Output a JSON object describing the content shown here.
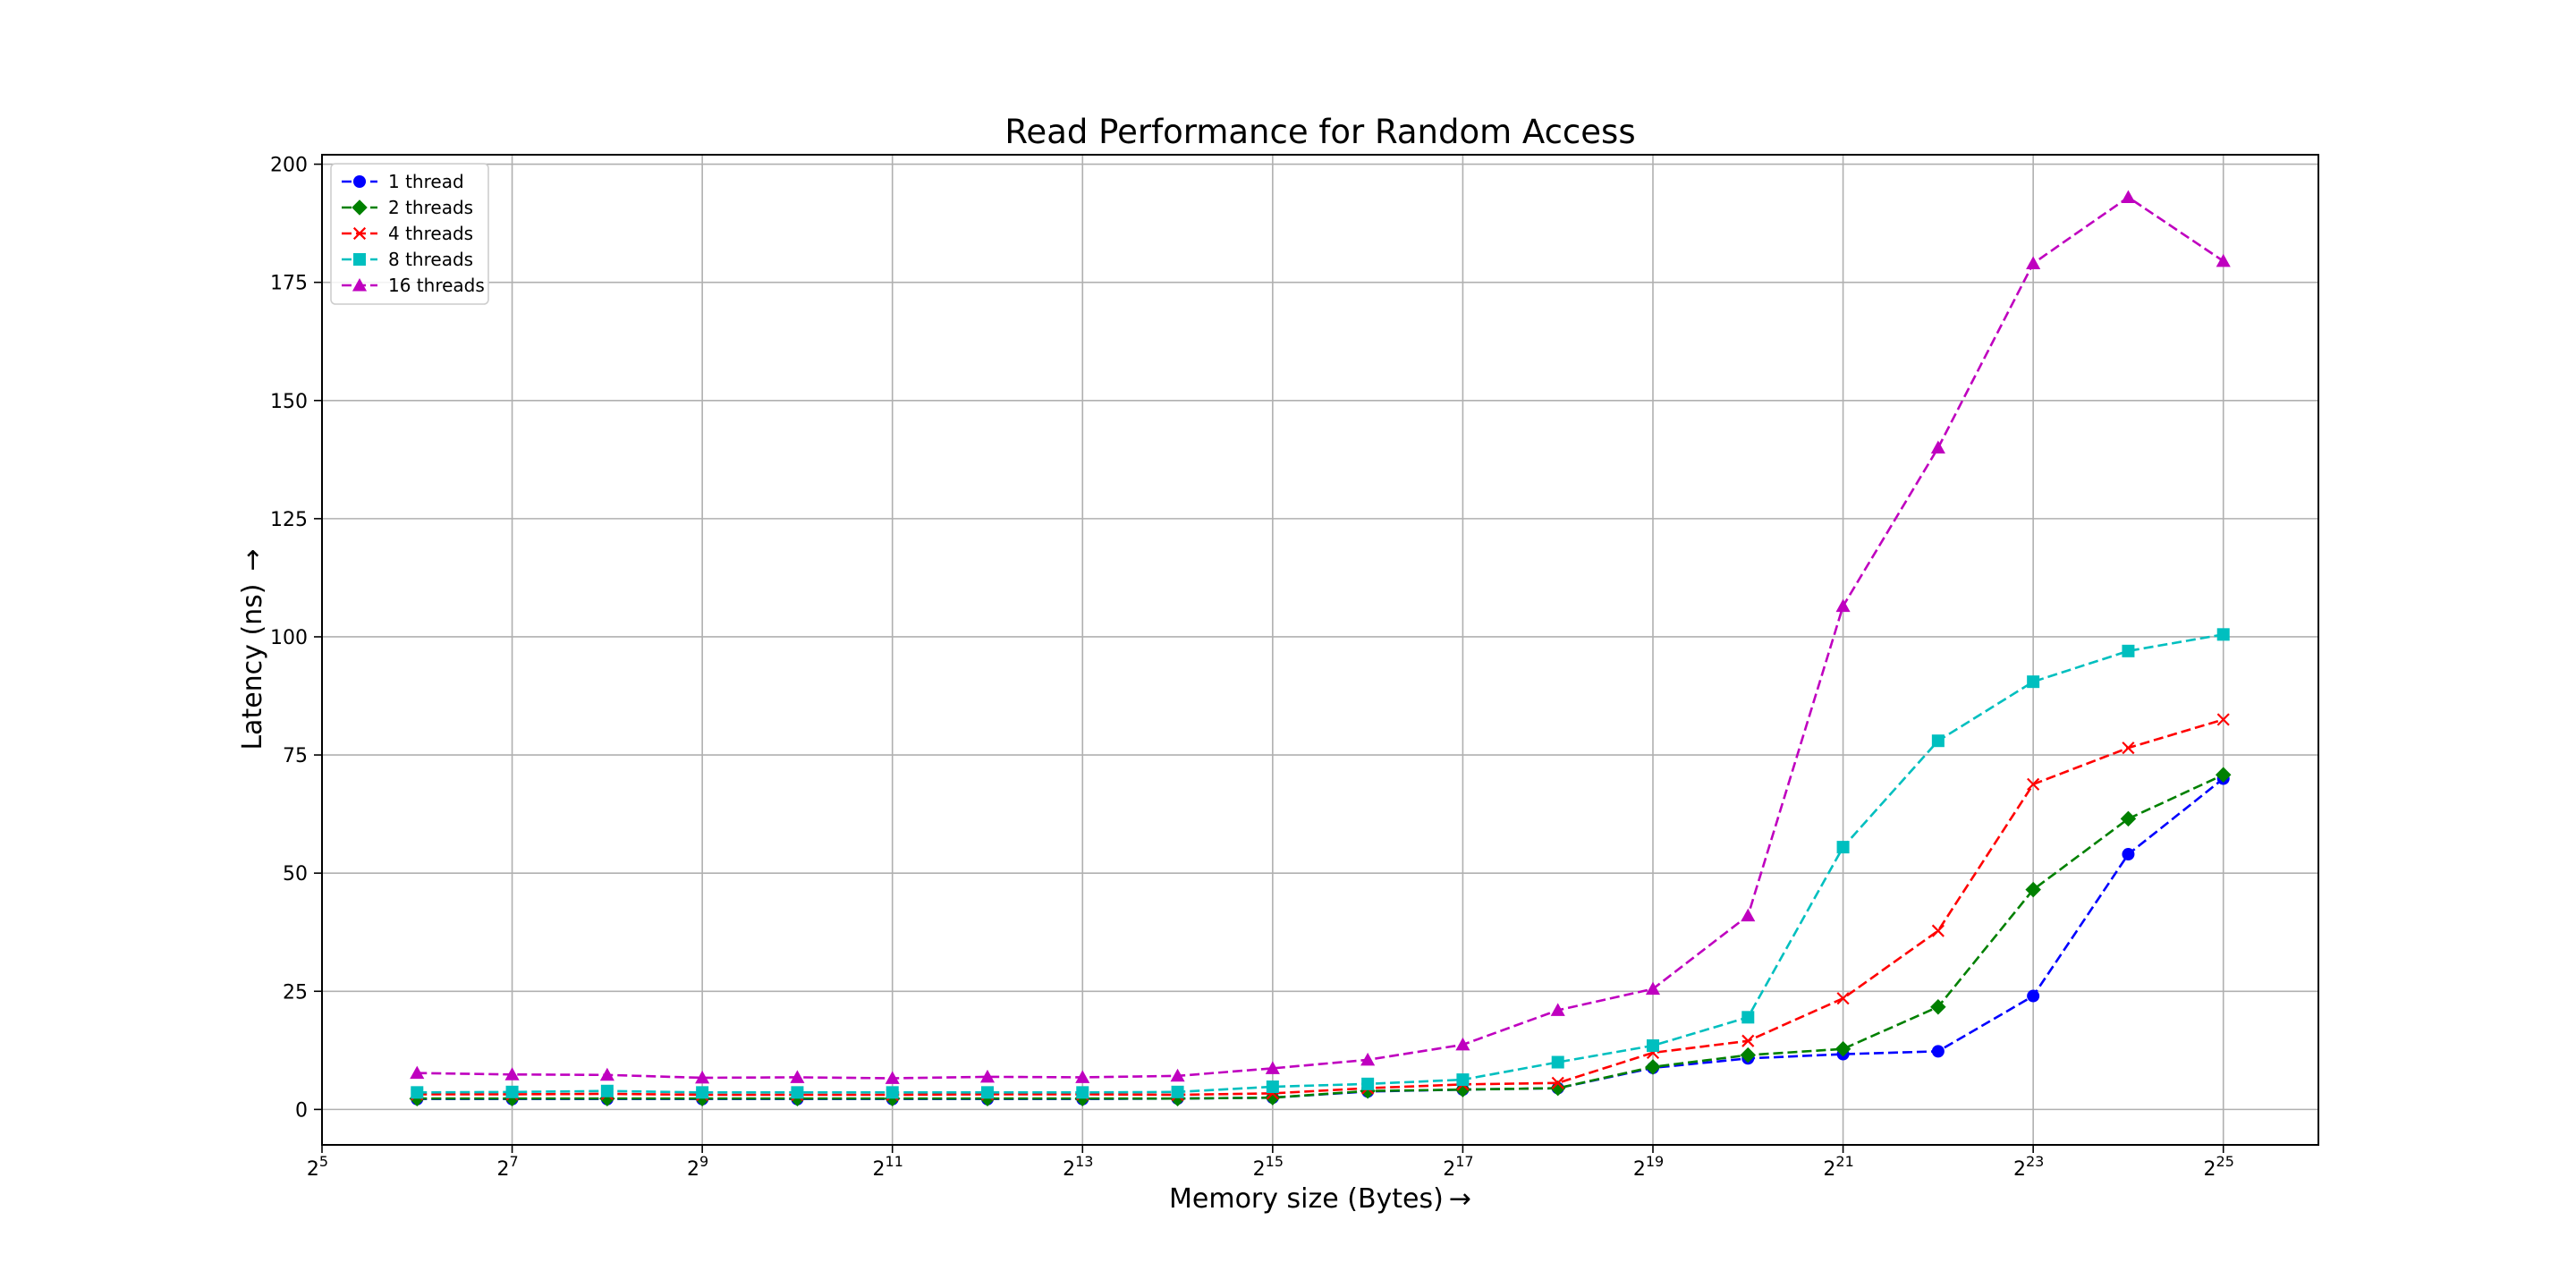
{
  "chart_data": {
    "type": "line",
    "title": "Read Performance for Random Access",
    "xlabel": "Memory size (Bytes)",
    "ylabel": "Latency (ns)",
    "x_scale": "log2",
    "x_exponents": [
      6,
      7,
      8,
      9,
      10,
      11,
      12,
      13,
      14,
      15,
      16,
      17,
      18,
      19,
      20,
      21,
      22,
      23,
      24,
      25
    ],
    "xlim_exponents": [
      5,
      26
    ],
    "xtick_base": "2",
    "xtick_exponents": [
      "5",
      "7",
      "9",
      "11",
      "13",
      "15",
      "17",
      "19",
      "21",
      "23",
      "25"
    ],
    "ylim": [
      -7.5,
      202
    ],
    "yticks": [
      "0",
      "25",
      "50",
      "75",
      "100",
      "125",
      "150",
      "175",
      "200"
    ],
    "grid": true,
    "legend_position": "top-left",
    "series": [
      {
        "name": "1 thread",
        "color": "#0000ff",
        "marker": "circle",
        "values": [
          2.2,
          2.2,
          2.2,
          2.2,
          2.2,
          2.2,
          2.2,
          2.2,
          2.3,
          2.5,
          3.8,
          4.2,
          4.5,
          8.8,
          10.8,
          11.7,
          12.3,
          24.0,
          54.0,
          70.0
        ]
      },
      {
        "name": "2 threads",
        "color": "#008000",
        "marker": "diamond",
        "values": [
          2.3,
          2.3,
          2.3,
          2.3,
          2.3,
          2.3,
          2.3,
          2.3,
          2.3,
          2.5,
          3.9,
          4.2,
          4.5,
          9.0,
          11.5,
          12.8,
          21.7,
          46.5,
          61.5,
          70.8
        ]
      },
      {
        "name": "4 threads",
        "color": "#ff0000",
        "marker": "x",
        "values": [
          3.2,
          3.2,
          3.3,
          3.1,
          3.1,
          3.1,
          3.2,
          3.2,
          3.1,
          3.4,
          4.5,
          5.3,
          5.6,
          12.0,
          14.5,
          23.5,
          37.8,
          68.8,
          76.5,
          82.5
        ]
      },
      {
        "name": "8 threads",
        "color": "#00bfbf",
        "marker": "square",
        "values": [
          3.6,
          3.7,
          3.9,
          3.6,
          3.6,
          3.6,
          3.6,
          3.6,
          3.7,
          4.8,
          5.4,
          6.3,
          10.0,
          13.5,
          19.5,
          55.5,
          78.0,
          90.5,
          97.0,
          100.5
        ]
      },
      {
        "name": "16 threads",
        "color": "#bf00bf",
        "marker": "triangle",
        "values": [
          7.7,
          7.4,
          7.3,
          6.7,
          6.8,
          6.6,
          6.9,
          6.8,
          7.1,
          8.7,
          10.5,
          13.7,
          21.0,
          25.5,
          41.0,
          106.5,
          140.0,
          179.0,
          193.0,
          179.5
        ]
      }
    ]
  }
}
